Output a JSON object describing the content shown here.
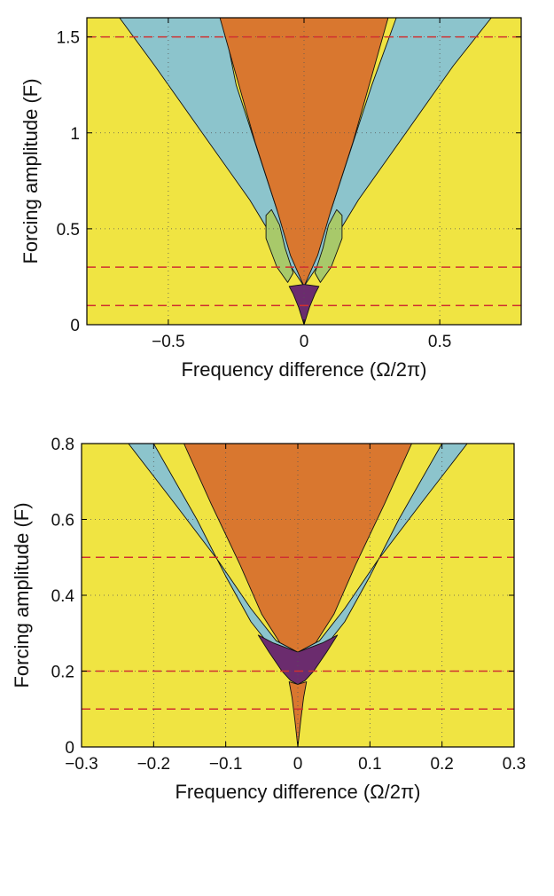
{
  "colors": {
    "background": "#F0E442",
    "region_cyan": "#8CC4CC",
    "region_orange": "#D9772F",
    "region_green": "#A8C96A",
    "region_purple": "#6B2C6E",
    "dashed_line": "#D03030",
    "outline": "#111111",
    "grid": "#555555"
  },
  "chart_data": [
    {
      "type": "area",
      "xlabel": "Frequency difference (Ω/2π)",
      "ylabel": "Forcing amplitude (F)",
      "xlim": [
        -0.8,
        0.8
      ],
      "ylim": [
        0,
        1.6
      ],
      "xticks": [
        -0.5,
        0,
        0.5
      ],
      "yticks": [
        0,
        0.5,
        1,
        1.5
      ],
      "xtick_labels": [
        "−0.5",
        "0",
        "0.5"
      ],
      "ytick_labels": [
        "0",
        "0.5",
        "1",
        "1.5"
      ],
      "grid": true,
      "dashed_lines_y": [
        1.5,
        0.3,
        0.1
      ],
      "regions": [
        {
          "color": "region_cyan",
          "boundary": [
            [
              -0.68,
              1.6
            ],
            [
              -0.55,
              1.35
            ],
            [
              -0.35,
              0.95
            ],
            [
              -0.2,
              0.65
            ],
            [
              -0.08,
              0.37
            ],
            [
              0,
              0.2
            ],
            [
              0.08,
              0.37
            ],
            [
              0.2,
              0.65
            ],
            [
              0.35,
              0.95
            ],
            [
              0.55,
              1.35
            ],
            [
              0.69,
              1.6
            ],
            [
              0.34,
              1.6
            ],
            [
              0.25,
              1.25
            ],
            [
              0.1,
              0.6
            ],
            [
              0,
              0.2
            ],
            [
              -0.1,
              0.6
            ],
            [
              -0.25,
              1.25
            ],
            [
              -0.3,
              1.6
            ]
          ]
        },
        {
          "color": "region_orange",
          "boundary": [
            [
              -0.31,
              1.6
            ],
            [
              -0.25,
              1.3
            ],
            [
              -0.18,
              0.95
            ],
            [
              -0.1,
              0.6
            ],
            [
              -0.05,
              0.36
            ],
            [
              0,
              0.2
            ],
            [
              0.05,
              0.36
            ],
            [
              0.1,
              0.6
            ],
            [
              0.18,
              0.95
            ],
            [
              0.25,
              1.3
            ],
            [
              0.31,
              1.6
            ]
          ]
        },
        {
          "color": "region_green",
          "boundary": [
            [
              -0.06,
              0.22
            ],
            [
              -0.1,
              0.3
            ],
            [
              -0.14,
              0.45
            ],
            [
              -0.14,
              0.57
            ],
            [
              -0.12,
              0.6
            ],
            [
              -0.09,
              0.52
            ],
            [
              -0.07,
              0.4
            ],
            [
              -0.04,
              0.27
            ]
          ]
        },
        {
          "color": "region_green",
          "boundary": [
            [
              0.06,
              0.22
            ],
            [
              0.1,
              0.3
            ],
            [
              0.14,
              0.45
            ],
            [
              0.14,
              0.57
            ],
            [
              0.12,
              0.6
            ],
            [
              0.09,
              0.52
            ],
            [
              0.07,
              0.4
            ],
            [
              0.04,
              0.27
            ]
          ]
        },
        {
          "color": "region_purple",
          "boundary": [
            [
              -0.055,
              0.2
            ],
            [
              -0.04,
              0.16
            ],
            [
              -0.02,
              0.09
            ],
            [
              0,
              0.0
            ],
            [
              0.02,
              0.09
            ],
            [
              0.04,
              0.16
            ],
            [
              0.055,
              0.2
            ],
            [
              0,
              0.21
            ]
          ]
        }
      ]
    },
    {
      "type": "area",
      "xlabel": "Frequency difference (Ω/2π)",
      "ylabel": "Forcing amplitude (F)",
      "xlim": [
        -0.3,
        0.3
      ],
      "ylim": [
        0,
        0.8
      ],
      "xticks": [
        -0.3,
        -0.2,
        -0.1,
        0,
        0.1,
        0.2,
        0.3
      ],
      "yticks": [
        0,
        0.2,
        0.4,
        0.6,
        0.8
      ],
      "xtick_labels": [
        "−0.3",
        "−0.2",
        "−0.1",
        "0",
        "0.1",
        "0.2",
        "0.3"
      ],
      "ytick_labels": [
        "0",
        "0.2",
        "0.4",
        "0.6",
        "0.8"
      ],
      "grid": true,
      "dashed_lines_y": [
        0.5,
        0.2,
        0.1
      ],
      "regions": [
        {
          "color": "region_cyan",
          "boundary": [
            [
              -0.235,
              0.8
            ],
            [
              -0.17,
              0.64
            ],
            [
              -0.11,
              0.49
            ],
            [
              -0.065,
              0.365
            ],
            [
              -0.03,
              0.28
            ],
            [
              0,
              0.25
            ],
            [
              0.03,
              0.28
            ],
            [
              0.065,
              0.365
            ],
            [
              0.11,
              0.49
            ],
            [
              0.17,
              0.64
            ],
            [
              0.235,
              0.8
            ],
            [
              0.2,
              0.8
            ],
            [
              0.14,
              0.6
            ],
            [
              0.1,
              0.45
            ],
            [
              0.065,
              0.33
            ],
            [
              0.04,
              0.27
            ],
            [
              0,
              0.25
            ],
            [
              -0.04,
              0.27
            ],
            [
              -0.065,
              0.33
            ],
            [
              -0.1,
              0.45
            ],
            [
              -0.14,
              0.6
            ],
            [
              -0.2,
              0.8
            ]
          ]
        },
        {
          "color": "region_orange",
          "boundary": [
            [
              -0.158,
              0.8
            ],
            [
              -0.12,
              0.64
            ],
            [
              -0.08,
              0.48
            ],
            [
              -0.05,
              0.35
            ],
            [
              -0.025,
              0.275
            ],
            [
              0,
              0.25
            ],
            [
              0.025,
              0.275
            ],
            [
              0.05,
              0.35
            ],
            [
              0.08,
              0.48
            ],
            [
              0.12,
              0.64
            ],
            [
              0.158,
              0.8
            ]
          ]
        },
        {
          "color": "region_purple",
          "boundary": [
            [
              -0.055,
              0.295
            ],
            [
              -0.035,
              0.275
            ],
            [
              0,
              0.25
            ],
            [
              0.035,
              0.275
            ],
            [
              0.055,
              0.295
            ],
            [
              0.04,
              0.25
            ],
            [
              0.022,
              0.2
            ],
            [
              0.01,
              0.175
            ],
            [
              0,
              0.165
            ],
            [
              -0.01,
              0.175
            ],
            [
              -0.022,
              0.2
            ],
            [
              -0.04,
              0.25
            ]
          ]
        },
        {
          "color": "region_orange",
          "boundary": [
            [
              -0.012,
              0.172
            ],
            [
              -0.008,
              0.13
            ],
            [
              -0.004,
              0.07
            ],
            [
              0,
              0.0
            ],
            [
              0.004,
              0.07
            ],
            [
              0.008,
              0.13
            ],
            [
              0.012,
              0.172
            ],
            [
              0,
              0.165
            ]
          ]
        }
      ]
    }
  ]
}
